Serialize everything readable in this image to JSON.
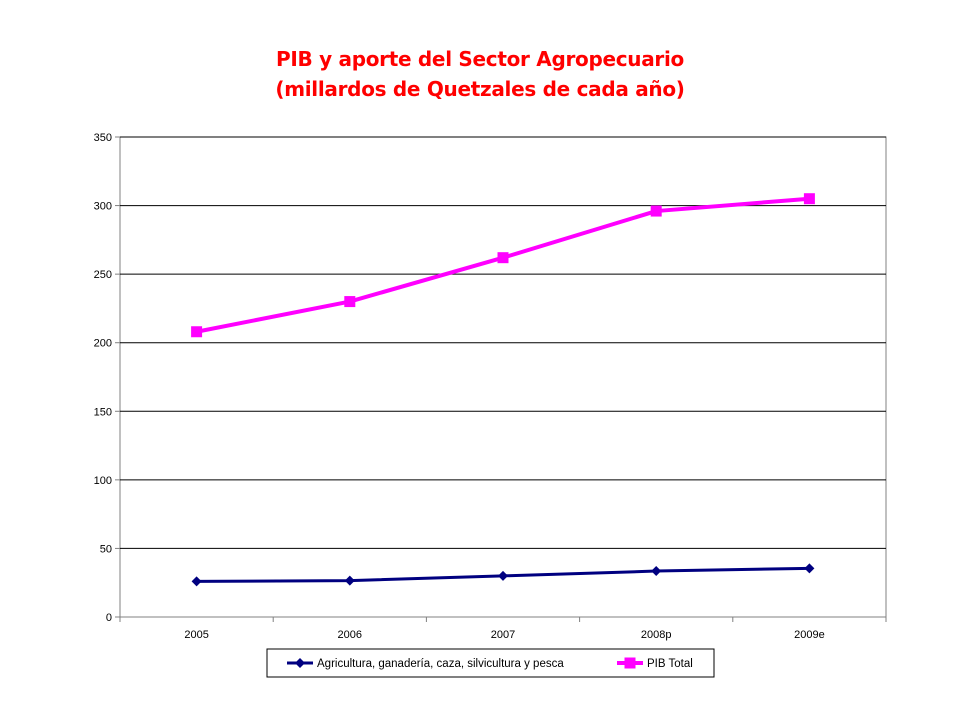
{
  "chart_data": {
    "type": "line",
    "title": [
      "PIB y aporte del Sector Agropecuario",
      "(millardos de Quetzales de cada año)"
    ],
    "categories": [
      "2005",
      "2006",
      "2007",
      "2008p",
      "2009e"
    ],
    "ylim": [
      0,
      350
    ],
    "yticks": [
      "0",
      "50",
      "100",
      "150",
      "200",
      "250",
      "300",
      "350"
    ],
    "grid": true,
    "legend_position": "bottom",
    "series": [
      {
        "name": "Agricultura, ganadería, caza, silvicultura y pesca",
        "values": [
          26,
          26.5,
          30,
          33.5,
          35.5
        ],
        "color": "#000080",
        "marker": "diamond"
      },
      {
        "name": "PIB Total",
        "values": [
          208,
          230,
          262,
          296,
          305
        ],
        "color": "#ff00ff",
        "marker": "square"
      }
    ]
  }
}
